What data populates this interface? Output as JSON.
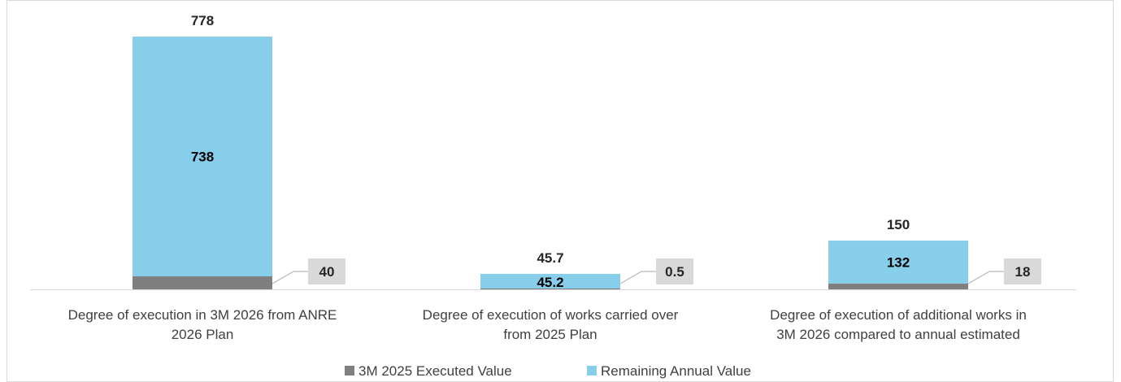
{
  "chart_data": {
    "type": "bar",
    "stacked": true,
    "categories": [
      [
        "Degree of execution in 3M 2026 from ANRE",
        "2026 Plan"
      ],
      [
        "Degree of execution of works carried over",
        "from 2025 Plan"
      ],
      [
        "Degree of execution of additional works in",
        "3M 2026 compared to annual estimated"
      ]
    ],
    "series": [
      {
        "name": "3M 2025 Executed Value",
        "values": [
          40,
          0.5,
          18
        ],
        "labels": [
          "40",
          "0.5",
          "18"
        ],
        "color": "#7f7f7f"
      },
      {
        "name": "Remaining Annual Value",
        "values": [
          738,
          45.2,
          132
        ],
        "labels": [
          "738",
          "45.2",
          "132"
        ],
        "color": "#87ceeb"
      }
    ],
    "totals": [
      778,
      45.7,
      150
    ],
    "total_labels": [
      "778",
      "45.7",
      "150"
    ],
    "ylim": [
      0,
      778
    ],
    "grid": false,
    "legend_position": "bottom",
    "callout_color": "#d9d9d9"
  }
}
